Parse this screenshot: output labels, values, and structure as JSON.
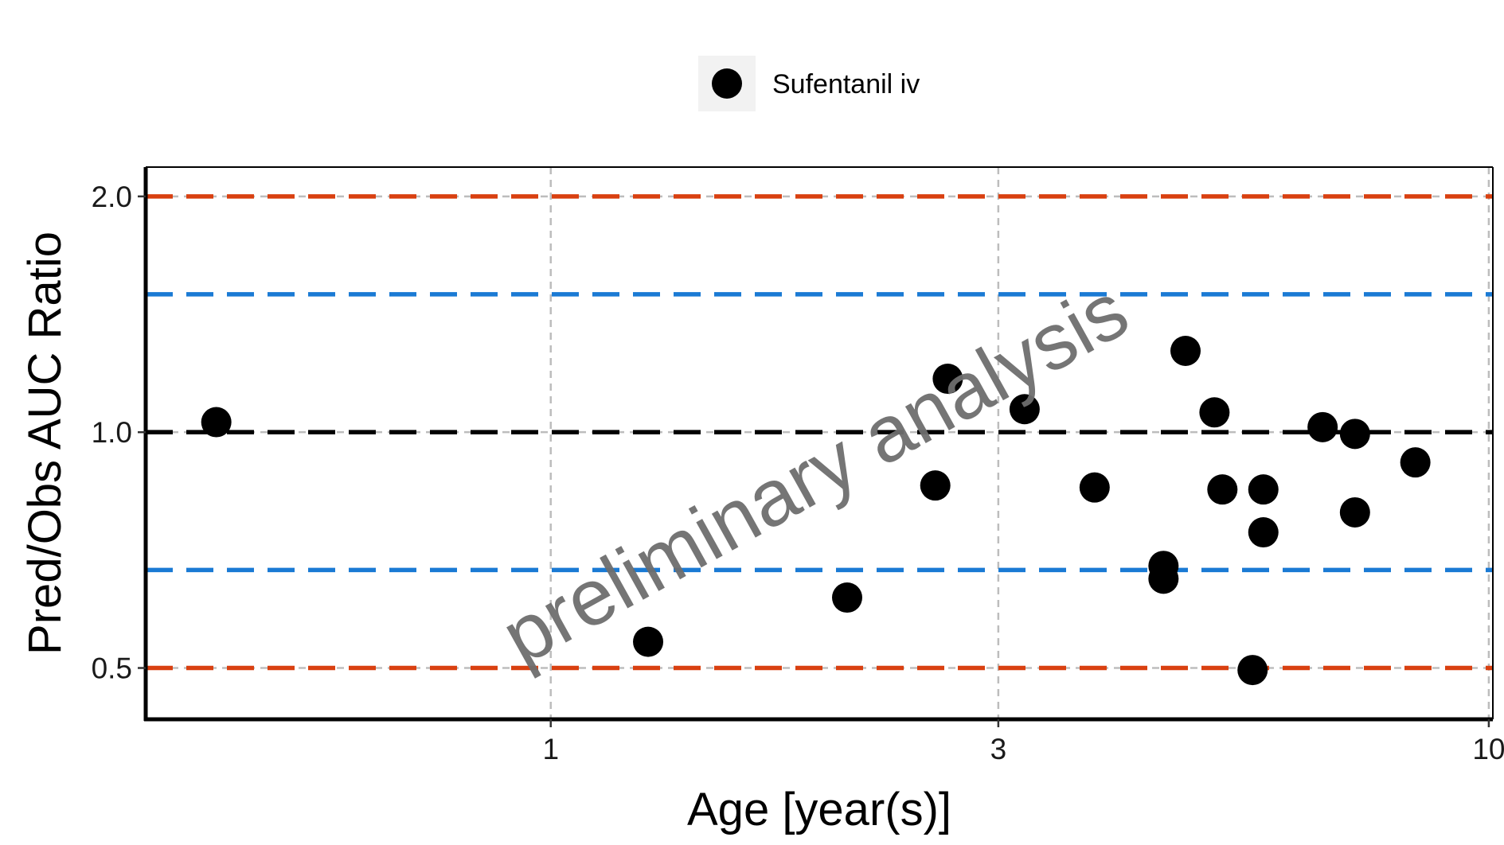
{
  "chart_data": {
    "type": "scatter",
    "title": "",
    "xlabel": "Age [year(s)]",
    "ylabel": "Pred/Obs AUC Ratio",
    "x_scale": "log",
    "y_scale": "log",
    "xlim": [
      0.37,
      10.1
    ],
    "ylim": [
      0.43,
      2.18
    ],
    "x_ticks": [
      {
        "value": 1,
        "label": "1"
      },
      {
        "value": 3,
        "label": "3"
      },
      {
        "value": 10,
        "label": "10"
      }
    ],
    "y_ticks": [
      {
        "value": 0.5,
        "label": "0.5"
      },
      {
        "value": 1.0,
        "label": "1.0"
      },
      {
        "value": 2.0,
        "label": "2.0"
      }
    ],
    "grid": true,
    "legend": {
      "position": "top",
      "entries": [
        "Sufentanil iv"
      ]
    },
    "reference_lines": [
      {
        "y": 2.0,
        "color": "#D94010"
      },
      {
        "y": 1.5,
        "color": "#1A7AD4"
      },
      {
        "y": 1.0,
        "color": "#000000"
      },
      {
        "y": 0.667,
        "color": "#1A7AD4"
      },
      {
        "y": 0.5,
        "color": "#D94010"
      }
    ],
    "series": [
      {
        "name": "Sufentanil iv",
        "color": "#000000",
        "points": [
          {
            "x": 0.44,
            "y": 1.03
          },
          {
            "x": 1.27,
            "y": 0.54
          },
          {
            "x": 2.07,
            "y": 0.615
          },
          {
            "x": 2.57,
            "y": 0.855
          },
          {
            "x": 2.65,
            "y": 1.17
          },
          {
            "x": 3.2,
            "y": 1.07
          },
          {
            "x": 3.8,
            "y": 0.85
          },
          {
            "x": 4.5,
            "y": 0.675
          },
          {
            "x": 4.5,
            "y": 0.65
          },
          {
            "x": 4.75,
            "y": 1.27
          },
          {
            "x": 5.1,
            "y": 1.06
          },
          {
            "x": 5.2,
            "y": 0.845
          },
          {
            "x": 5.75,
            "y": 0.845
          },
          {
            "x": 5.75,
            "y": 0.745
          },
          {
            "x": 5.6,
            "y": 0.497
          },
          {
            "x": 6.65,
            "y": 1.015
          },
          {
            "x": 7.2,
            "y": 0.79
          },
          {
            "x": 7.2,
            "y": 0.995
          },
          {
            "x": 8.35,
            "y": 0.915
          }
        ]
      }
    ]
  },
  "watermark": "preliminary analysis"
}
